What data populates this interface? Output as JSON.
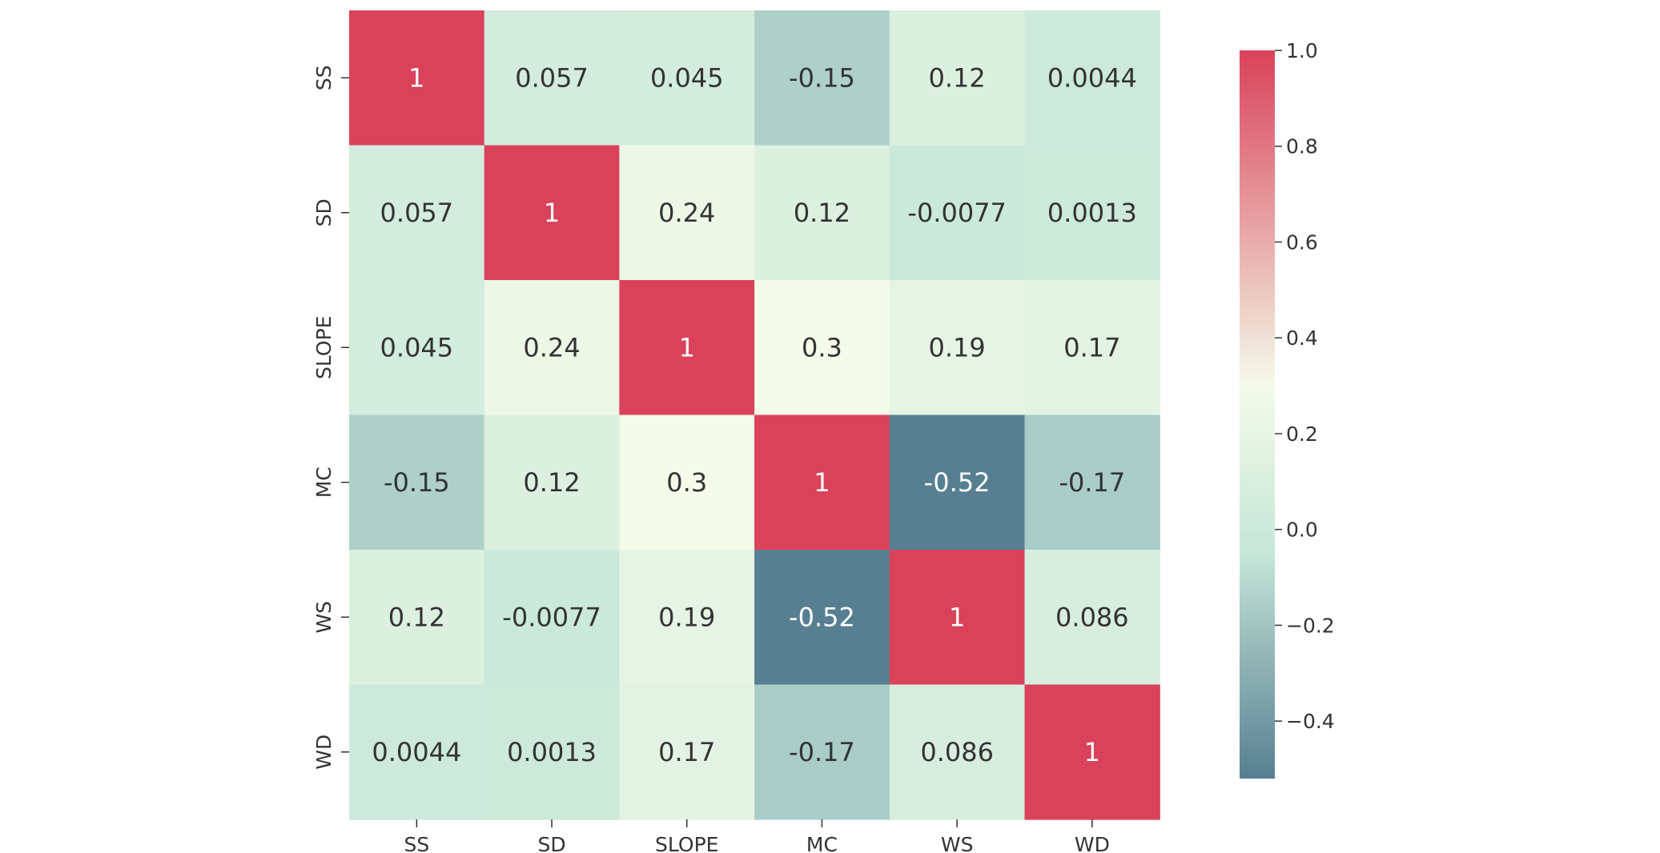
{
  "chart_data": {
    "type": "heatmap",
    "title": "",
    "xlabel": "",
    "ylabel": "",
    "row_labels": [
      "SS",
      "SD",
      "SLOPE",
      "MC",
      "WS",
      "WD"
    ],
    "col_labels": [
      "SS",
      "SD",
      "SLOPE",
      "MC",
      "WS",
      "WD"
    ],
    "values": [
      [
        1,
        0.057,
        0.045,
        -0.15,
        0.12,
        0.0044
      ],
      [
        0.057,
        1,
        0.24,
        0.12,
        -0.0077,
        0.0013
      ],
      [
        0.045,
        0.24,
        1,
        0.3,
        0.19,
        0.17
      ],
      [
        -0.15,
        0.12,
        0.3,
        1,
        -0.52,
        -0.17
      ],
      [
        0.12,
        -0.0077,
        0.19,
        -0.52,
        1,
        0.086
      ],
      [
        0.0044,
        0.0013,
        0.17,
        -0.17,
        0.086,
        1
      ]
    ],
    "value_labels": [
      [
        "1",
        "0.057",
        "0.045",
        "-0.15",
        "0.12",
        "0.0044"
      ],
      [
        "0.057",
        "1",
        "0.24",
        "0.12",
        "-0.0077",
        "0.0013"
      ],
      [
        "0.045",
        "0.24",
        "1",
        "0.3",
        "0.19",
        "0.17"
      ],
      [
        "-0.15",
        "0.12",
        "0.3",
        "1",
        "-0.52",
        "-0.17"
      ],
      [
        "0.12",
        "-0.0077",
        "0.19",
        "-0.52",
        "1",
        "0.086"
      ],
      [
        "0.0044",
        "0.0013",
        "0.17",
        "-0.17",
        "0.086",
        "1"
      ]
    ],
    "colorbar": {
      "vmin": -0.52,
      "vmax": 1.0,
      "ticks": [
        1.0,
        0.8,
        0.6,
        0.4,
        0.2,
        0.0,
        -0.2,
        -0.4
      ],
      "tick_labels": [
        "1.0",
        "0.8",
        "0.6",
        "0.4",
        "0.2",
        "0.0",
        "−0.2",
        "−0.4"
      ]
    },
    "colormap": {
      "low": "#577f91",
      "mid_low": "#c5e6d8",
      "mid": "#f4fbe9",
      "high": "#d9425a"
    }
  }
}
